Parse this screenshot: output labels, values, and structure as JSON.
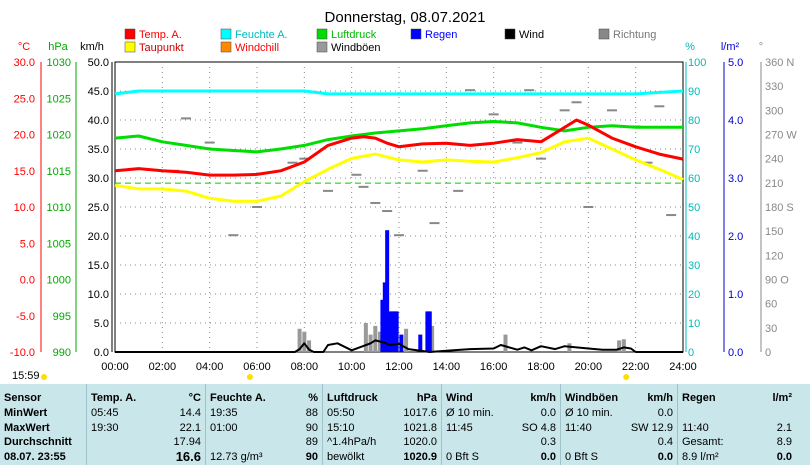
{
  "chart_data": {
    "type": "line",
    "title": "Donnerstag, 08.07.2021",
    "x_ticks": [
      "00:00",
      "02:00",
      "04:00",
      "06:00",
      "08:00",
      "10:00",
      "12:00",
      "14:00",
      "16:00",
      "18:00",
      "20:00",
      "22:00",
      "24:00"
    ],
    "axes": {
      "temp": {
        "unit": "°C",
        "ticks": [
          "30.0",
          "25.0",
          "20.0",
          "15.0",
          "10.0",
          "5.0",
          "0.0",
          "-5.0",
          "-10.0"
        ],
        "range": [
          -10,
          30
        ]
      },
      "pressure": {
        "unit": "hPa",
        "ticks": [
          "1030",
          "1025",
          "1020",
          "1015",
          "1010",
          "1005",
          "1000",
          "995",
          "990"
        ],
        "range": [
          990,
          1030
        ]
      },
      "wind": {
        "unit": "km/h",
        "ticks": [
          "50.0",
          "45.0",
          "40.0",
          "35.0",
          "30.0",
          "25.0",
          "20.0",
          "15.0",
          "10.0",
          "5.0",
          "0.0"
        ],
        "range": [
          0,
          50
        ]
      },
      "humidity": {
        "unit": "%",
        "ticks": [
          "100",
          "90",
          "80",
          "70",
          "60",
          "50",
          "40",
          "30",
          "20",
          "10",
          "0"
        ],
        "range": [
          0,
          100
        ]
      },
      "rain": {
        "unit": "l/m²",
        "ticks": [
          "5.0",
          "4.0",
          "3.0",
          "2.0",
          "1.0",
          "0.0"
        ],
        "range": [
          0,
          5
        ]
      },
      "direction": {
        "unit": "°",
        "ticks": [
          "360 N",
          "330",
          "300",
          "270 W",
          "240",
          "210",
          "180 S",
          "150",
          "120",
          "90 O",
          "60",
          "30",
          "0"
        ],
        "range": [
          0,
          360
        ]
      }
    },
    "legend": [
      {
        "name": "Temp. A.",
        "color": "#ff0000"
      },
      {
        "name": "Feuchte A.",
        "color": "#00ffff"
      },
      {
        "name": "Luftdruck",
        "color": "#00dd00"
      },
      {
        "name": "Regen",
        "color": "#0000ff"
      },
      {
        "name": "Wind",
        "color": "#000000"
      },
      {
        "name": "Richtung",
        "color": "#888888"
      },
      {
        "name": "Taupunkt",
        "color": "#ffff00"
      },
      {
        "name": "Windchill",
        "color": "#ff8800"
      },
      {
        "name": "Windböen",
        "color": "#999999"
      }
    ],
    "series": [
      {
        "name": "Temp. A.",
        "color": "#ff0000",
        "axis": "temp",
        "x": [
          0,
          1,
          2,
          3,
          4,
          5,
          6,
          7,
          8,
          9,
          10,
          10.5,
          11,
          11.5,
          12,
          13,
          14,
          15,
          16,
          17,
          18,
          19,
          19.5,
          20,
          21,
          22,
          23,
          24
        ],
        "y": [
          15,
          15.3,
          15,
          14.8,
          14.4,
          14.4,
          14.5,
          15,
          16.2,
          18.5,
          19.5,
          19.7,
          19.5,
          18.8,
          18.3,
          18.7,
          18.8,
          18.5,
          18.8,
          19.3,
          19,
          21,
          22,
          21.3,
          19.5,
          18.3,
          17.3,
          16.6
        ]
      },
      {
        "name": "Taupunkt",
        "color": "#ffff00",
        "axis": "temp",
        "x": [
          0,
          1,
          2,
          3,
          4,
          5,
          6,
          7,
          8,
          9,
          10,
          11,
          12,
          13,
          14,
          15,
          16,
          17,
          18,
          19,
          20,
          21,
          22,
          23,
          24
        ],
        "y": [
          13,
          12.5,
          12.5,
          12.2,
          11.2,
          10.8,
          10.8,
          11.5,
          13.5,
          15.2,
          16.7,
          17.3,
          16.5,
          16.2,
          16.5,
          16.3,
          16.2,
          16.8,
          17.5,
          19,
          19.5,
          18,
          16.5,
          15.2,
          13.8
        ]
      },
      {
        "name": "Luftdruck",
        "color": "#00dd00",
        "axis": "pressure",
        "x": [
          0,
          1,
          2,
          3,
          4,
          5,
          6,
          7,
          8,
          9,
          10,
          11,
          12,
          13,
          14,
          15,
          16,
          17,
          18,
          19,
          20,
          21,
          22,
          23,
          24
        ],
        "y": [
          1019.5,
          1019.8,
          1019,
          1018.5,
          1018,
          1017.8,
          1017.6,
          1018,
          1018.5,
          1019.3,
          1019.8,
          1020.2,
          1020.5,
          1020.8,
          1021.2,
          1021.6,
          1021.8,
          1021.6,
          1021,
          1020.5,
          1021,
          1021.2,
          1021,
          1021,
          1021
        ]
      },
      {
        "name": "Feuchte A.",
        "color": "#00ffff",
        "axis": "humidity",
        "x": [
          0,
          1,
          2,
          3,
          4,
          5,
          6,
          7,
          8,
          9,
          10,
          12,
          14,
          16,
          18,
          20,
          22,
          24
        ],
        "y": [
          89,
          90,
          90,
          90,
          90,
          90,
          90,
          90,
          90,
          89,
          89,
          89,
          89,
          89,
          89,
          89,
          89,
          90
        ]
      },
      {
        "name": "Wind",
        "color": "#000000",
        "axis": "wind",
        "x": [
          0,
          7.6,
          7.8,
          8,
          8.2,
          8.4,
          8.6,
          8.8,
          9,
          9.4,
          10,
          10.8,
          11,
          11.4,
          11.6,
          12,
          12.4,
          13.3,
          14,
          15,
          16,
          16.3,
          17,
          17.3,
          17.6,
          18,
          18.6,
          19,
          20,
          20.6,
          21.2,
          21.5,
          21.8,
          22,
          24
        ],
        "y": [
          0,
          0,
          0.5,
          1.5,
          0.4,
          0,
          0,
          0,
          1.2,
          1.5,
          0.3,
          1.5,
          2,
          1.6,
          1.2,
          1.4,
          0.5,
          0,
          0.2,
          0.5,
          0.6,
          1.2,
          0.4,
          0.8,
          0.3,
          1,
          0.5,
          1,
          0.6,
          0.4,
          0.4,
          0.8,
          0.6,
          0,
          0
        ]
      },
      {
        "name": "Regen",
        "color": "#0000ff",
        "axis": "rain",
        "bars": [
          [
            11.3,
            0.9
          ],
          [
            11.4,
            1.2
          ],
          [
            11.5,
            2.1
          ],
          [
            11.6,
            0.7
          ],
          [
            11.7,
            0.7
          ],
          [
            11.8,
            0.7
          ],
          [
            11.9,
            0.7
          ],
          [
            12.1,
            0.3
          ],
          [
            12.9,
            0.3
          ],
          [
            13.2,
            0.7
          ],
          [
            13.3,
            0.7
          ]
        ]
      }
    ],
    "gust_bars": [
      [
        7.8,
        4
      ],
      [
        8,
        3.5
      ],
      [
        8.2,
        2
      ],
      [
        10.6,
        5
      ],
      [
        10.8,
        3
      ],
      [
        11,
        4.5
      ],
      [
        11.2,
        3.5
      ],
      [
        12.3,
        4
      ],
      [
        13.4,
        4.5
      ],
      [
        16.5,
        3
      ],
      [
        19.2,
        1.5
      ],
      [
        21.3,
        2
      ],
      [
        21.5,
        2.2
      ]
    ],
    "direction_points": [
      [
        7.5,
        235
      ],
      [
        8,
        240
      ],
      [
        9,
        200
      ],
      [
        10.2,
        220
      ],
      [
        10.5,
        205
      ],
      [
        11,
        185
      ],
      [
        11.5,
        175
      ],
      [
        12,
        145
      ],
      [
        13,
        225
      ],
      [
        13.5,
        160
      ],
      [
        14.5,
        200
      ],
      [
        15,
        325
      ],
      [
        16,
        295
      ],
      [
        17,
        260
      ],
      [
        17.5,
        325
      ],
      [
        18,
        240
      ],
      [
        19,
        300
      ],
      [
        19.5,
        310
      ],
      [
        20,
        180
      ],
      [
        21,
        300
      ],
      [
        22,
        280
      ],
      [
        22.5,
        235
      ],
      [
        23,
        305
      ],
      [
        23.5,
        170
      ],
      [
        4,
        260
      ],
      [
        5,
        145
      ],
      [
        6,
        180
      ],
      [
        3,
        290
      ],
      [
        2.5,
        225
      ]
    ],
    "dew_reference_temp": 13.3
  },
  "timestamp": "15:59",
  "panel": {
    "sensor": {
      "header": "Sensor",
      "rows": [
        "MinWert",
        "MaxWert",
        "Durchschnitt",
        "08.07. 23:55"
      ]
    },
    "temp": {
      "header": "Temp. A.",
      "unit": "°C",
      "rows": [
        [
          "05:45",
          "14.4"
        ],
        [
          "19:30",
          "22.1"
        ],
        [
          "",
          "17.94"
        ],
        [
          "",
          "16.6"
        ]
      ]
    },
    "humid": {
      "header": "Feuchte A.",
      "unit": "%",
      "rows": [
        [
          "19:35",
          "88"
        ],
        [
          "01:00",
          "90"
        ],
        [
          "",
          "89"
        ],
        [
          "12.73 g/m³",
          "90"
        ]
      ]
    },
    "press": {
      "header": "Luftdruck",
      "unit": "hPa",
      "rows": [
        [
          "05:50",
          "1017.6"
        ],
        [
          "15:10",
          "1021.8"
        ],
        [
          "^1.4hPa/h",
          "1020.0"
        ],
        [
          "bewölkt",
          "1020.9"
        ]
      ]
    },
    "wind": {
      "header": "Wind",
      "unit": "km/h",
      "rows": [
        [
          "Ø 10 min.",
          "0.0"
        ],
        [
          "11:45",
          "SO 4.8"
        ],
        [
          "",
          "0.3"
        ],
        [
          "0 Bft S",
          "0.0"
        ]
      ]
    },
    "gust": {
      "header": "Windböen",
      "unit": "km/h",
      "rows": [
        [
          "Ø 10 min.",
          "0.0"
        ],
        [
          "11:40",
          "SW 12.9"
        ],
        [
          "",
          "0.4"
        ],
        [
          "0 Bft S",
          "0.0"
        ]
      ]
    },
    "rain": {
      "header": "Regen",
      "unit": "l/m²",
      "rows": [
        [
          "",
          ""
        ],
        [
          "11:40",
          "2.1"
        ],
        [
          "Gesamt:",
          "8.9"
        ],
        [
          "8.9 l/m²",
          "0.0"
        ]
      ]
    }
  }
}
